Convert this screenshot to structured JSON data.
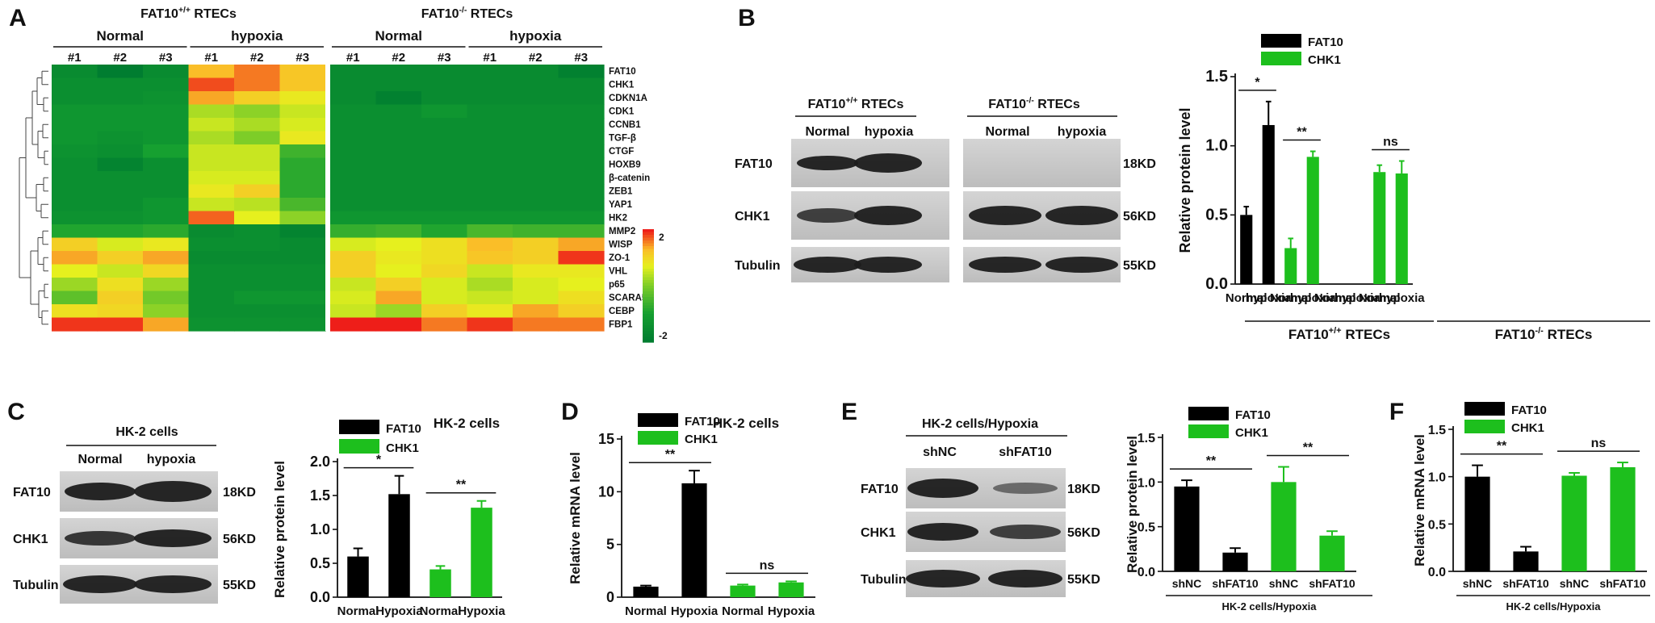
{
  "colors": {
    "fat10": "#000000",
    "chk1": "#1dbf1d",
    "blot_band": "#1c1c1c"
  },
  "panel_letters": [
    "A",
    "B",
    "C",
    "D",
    "E",
    "F"
  ],
  "heatmap": {
    "group_left": "FAT10+/+ RTECs",
    "group_right": "FAT10-/- RTECs",
    "conditions": [
      "Normal",
      "hypoxia",
      "Normal",
      "hypoxia"
    ],
    "replicates": [
      "#1",
      "#2",
      "#3",
      "#1",
      "#2",
      "#3",
      "#1",
      "#2",
      "#3",
      "#1",
      "#2",
      "#3"
    ],
    "genes": [
      "FAT10",
      "CHK1",
      "CDKN1A",
      "CDK1",
      "CCNB1",
      "TGF-β",
      "CTGF",
      "HOXB9",
      "β-catenin",
      "ZEB1",
      "YAP1",
      "HK2",
      "MMP2",
      "WISP",
      "ZO-1",
      "VHL",
      "p65",
      "SCARA5",
      "CEBP",
      "FBP1"
    ],
    "scale_max_label": "2",
    "scale_min_label": "-2",
    "values": [
      [
        -1.6,
        -2,
        -1.6,
        1.3,
        1.6,
        1.2,
        -1.6,
        -1.6,
        -1.6,
        -1.6,
        -1.6,
        -1.9
      ],
      [
        -1.5,
        -1.5,
        -1.5,
        1.8,
        1.6,
        1.2,
        -1.6,
        -1.6,
        -1.6,
        -1.6,
        -1.6,
        -1.6
      ],
      [
        -1.5,
        -1.5,
        -1.4,
        1.4,
        1.1,
        0.8,
        -1.6,
        -1.9,
        -1.6,
        -1.6,
        -1.6,
        -1.6
      ],
      [
        -1.3,
        -1.3,
        -1.3,
        0.3,
        0.1,
        0.5,
        -1.5,
        -1.5,
        -1.3,
        -1.5,
        -1.5,
        -1.5
      ],
      [
        -1.3,
        -1.3,
        -1.3,
        0.5,
        0.3,
        0.6,
        -1.5,
        -1.5,
        -1.5,
        -1.5,
        -1.5,
        -1.5
      ],
      [
        -1.3,
        -1.4,
        -1.3,
        0.3,
        0,
        0.8,
        -1.5,
        -1.5,
        -1.5,
        -1.5,
        -1.5,
        -1.5
      ],
      [
        -1.4,
        -1.5,
        -1,
        0.5,
        0.5,
        -0.6,
        -1.5,
        -1.5,
        -1.5,
        -1.5,
        -1.5,
        -1.5
      ],
      [
        -1.5,
        -1.8,
        -1.5,
        0.5,
        0.5,
        -0.8,
        -1.5,
        -1.5,
        -1.5,
        -1.5,
        -1.5,
        -1.5
      ],
      [
        -1.5,
        -1.5,
        -1.5,
        0.6,
        0.6,
        -0.8,
        -1.5,
        -1.5,
        -1.5,
        -1.5,
        -1.5,
        -1.5
      ],
      [
        -1.5,
        -1.5,
        -1.5,
        0.8,
        1.1,
        -0.8,
        -1.5,
        -1.5,
        -1.5,
        -1.5,
        -1.5,
        -1.5
      ],
      [
        -1.5,
        -1.5,
        -1.3,
        0.5,
        0.4,
        -0.5,
        -1.5,
        -1.5,
        -1.5,
        -1.5,
        -1.5,
        -1.5
      ],
      [
        -1.4,
        -1.4,
        -1.3,
        1.7,
        0.7,
        0.1,
        -1.3,
        -1.3,
        -1.3,
        -1.3,
        -1.3,
        -1.3
      ],
      [
        -0.9,
        -0.9,
        -0.8,
        -1.6,
        -1.5,
        -1.8,
        -0.7,
        -0.6,
        -0.9,
        -0.5,
        -0.6,
        -0.6
      ],
      [
        1.1,
        0.6,
        0.8,
        -1.5,
        -1.5,
        -1.6,
        0.6,
        0.7,
        0.9,
        1.3,
        1.1,
        1.4
      ],
      [
        1.4,
        1.1,
        1.4,
        -1.6,
        -1.6,
        -1.6,
        1.1,
        0.8,
        0.9,
        1.2,
        1.1,
        1.9
      ],
      [
        0.7,
        0.5,
        1,
        -1.5,
        -1.5,
        -1.5,
        1.1,
        0.7,
        1,
        0.5,
        0.8,
        0.8
      ],
      [
        0.2,
        0.9,
        0.2,
        -1.5,
        -1.5,
        -1.5,
        0.5,
        1.1,
        0.6,
        0.3,
        0.6,
        0.7
      ],
      [
        -0.3,
        1.1,
        -0.1,
        -1.5,
        -1.3,
        -1.3,
        0.6,
        1.4,
        0.6,
        0.5,
        0.6,
        0.9
      ],
      [
        0.9,
        1,
        0.1,
        -1.5,
        -1.5,
        -1.5,
        0.5,
        0.2,
        1.1,
        0.8,
        1.4,
        1.1
      ],
      [
        1.9,
        1.9,
        1.4,
        -1.4,
        -1.4,
        -1.4,
        2,
        2,
        1.6,
        1.9,
        1.6,
        1.6
      ]
    ]
  },
  "blot_B": {
    "group_left": "FAT10+/+ RTECs",
    "group_right": "FAT10-/- RTECs",
    "lanes": [
      "Normal",
      "hypoxia",
      "Normal",
      "hypoxia"
    ],
    "rows": [
      "FAT10",
      "CHK1",
      "Tubulin"
    ],
    "sizes": [
      "18KD",
      "56KD",
      "55KD"
    ]
  },
  "blot_C": {
    "title": "HK-2 cells",
    "lanes": [
      "Normal",
      "hypoxia"
    ],
    "rows": [
      "FAT10",
      "CHK1",
      "Tubulin"
    ],
    "sizes": [
      "18KD",
      "56KD",
      "55KD"
    ]
  },
  "blot_E": {
    "title": "HK-2 cells/Hypoxia",
    "lanes": [
      "shNC",
      "shFAT10"
    ],
    "rows": [
      "FAT10",
      "CHK1",
      "Tubulin"
    ],
    "sizes": [
      "18KD",
      "56KD",
      "55KD"
    ]
  },
  "chart_data": [
    {
      "panel": "B",
      "type": "bar",
      "ylabel": "Relative protein level",
      "yticks": [
        "0.0",
        "0.5",
        "1.0",
        "1.5"
      ],
      "ylim": [
        0,
        1.5
      ],
      "legend": [
        "FAT10",
        "CHK1"
      ],
      "categories": [
        "Normal",
        "hypoxia",
        "Normal",
        "hypoxia",
        "Normal",
        "hypoxia",
        "Normal",
        "hypoxia"
      ],
      "values": [
        0.5,
        1.15,
        0.26,
        0.92,
        0,
        0,
        0.81,
        0.8
      ],
      "errors": [
        0.06,
        0.17,
        0.07,
        0.04,
        0,
        0,
        0.05,
        0.09
      ],
      "series_index": [
        0,
        0,
        1,
        1,
        0,
        0,
        1,
        1
      ],
      "group_labels": [
        "FAT10+/+ RTECs",
        "FAT10-/- RTECs"
      ],
      "significance": [
        {
          "from": 0,
          "to": 1,
          "label": "*"
        },
        {
          "from": 2,
          "to": 3,
          "label": "**"
        },
        {
          "from": 6,
          "to": 7,
          "label": "ns"
        }
      ]
    },
    {
      "panel": "C",
      "type": "bar",
      "title": "HK-2 cells",
      "ylabel": "Relative protein level",
      "yticks": [
        "0.0",
        "0.5",
        "1.0",
        "1.5",
        "2.0"
      ],
      "ylim": [
        0,
        2.0
      ],
      "legend": [
        "FAT10",
        "CHK1"
      ],
      "categories": [
        "Normal",
        "Hypoxia",
        "Normal",
        "Hypoxia"
      ],
      "values": [
        0.6,
        1.52,
        0.41,
        1.32
      ],
      "errors": [
        0.12,
        0.27,
        0.05,
        0.1
      ],
      "series_index": [
        0,
        0,
        1,
        1
      ],
      "significance": [
        {
          "from": 0,
          "to": 1,
          "label": "*"
        },
        {
          "from": 2,
          "to": 3,
          "label": "**"
        }
      ]
    },
    {
      "panel": "D",
      "type": "bar",
      "title": "HK-2 cells",
      "ylabel": "Relative mRNA level",
      "yticks": [
        "0",
        "5",
        "10",
        "15"
      ],
      "ylim": [
        0,
        15
      ],
      "legend": [
        "FAT10",
        "CHK1"
      ],
      "categories": [
        "Normal",
        "Hypoxia",
        "Normal",
        "Hypoxia"
      ],
      "values": [
        1.0,
        10.8,
        1.1,
        1.4
      ],
      "errors": [
        0.1,
        1.2,
        0.1,
        0.1
      ],
      "series_index": [
        0,
        0,
        1,
        1
      ],
      "significance": [
        {
          "from": 0,
          "to": 1,
          "label": "**"
        },
        {
          "from": 2,
          "to": 3,
          "label": "ns"
        }
      ]
    },
    {
      "panel": "E",
      "type": "bar",
      "ylabel": "Relative protein level",
      "yticks": [
        "0.0",
        "0.5",
        "1.0",
        "1.5"
      ],
      "ylim": [
        0,
        1.5
      ],
      "legend": [
        "FAT10",
        "CHK1"
      ],
      "categories": [
        "shNC",
        "shFAT10",
        "shNC",
        "shFAT10"
      ],
      "values": [
        0.95,
        0.21,
        1.0,
        0.4
      ],
      "errors": [
        0.07,
        0.05,
        0.17,
        0.05
      ],
      "series_index": [
        0,
        0,
        1,
        1
      ],
      "group_labels": [
        "HK-2 cells/Hypoxia"
      ],
      "significance": [
        {
          "from": 0,
          "to": 1,
          "label": "**"
        },
        {
          "from": 2,
          "to": 3,
          "label": "**"
        }
      ]
    },
    {
      "panel": "F",
      "type": "bar",
      "ylabel": "Relative mRNA level",
      "yticks": [
        "0.0",
        "0.5",
        "1.0",
        "1.5"
      ],
      "ylim": [
        0,
        1.5
      ],
      "legend": [
        "FAT10",
        "CHK1"
      ],
      "categories": [
        "shNC",
        "shFAT10",
        "shNC",
        "shFAT10"
      ],
      "values": [
        1.0,
        0.21,
        1.01,
        1.1
      ],
      "errors": [
        0.12,
        0.05,
        0.03,
        0.05
      ],
      "series_index": [
        0,
        0,
        1,
        1
      ],
      "group_labels": [
        "HK-2 cells/Hypoxia"
      ],
      "significance": [
        {
          "from": 0,
          "to": 1,
          "label": "**"
        },
        {
          "from": 2,
          "to": 3,
          "label": "ns"
        }
      ]
    }
  ]
}
